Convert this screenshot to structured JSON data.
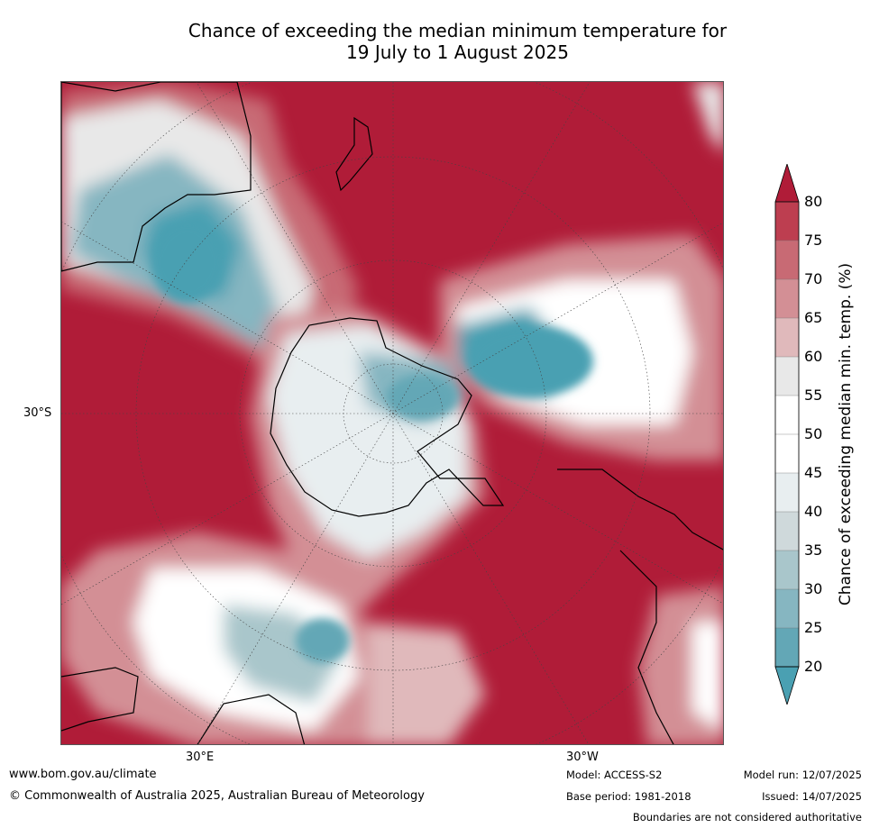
{
  "title_line1": "Chance of exceeding the median minimum temperature for",
  "title_line2": "19 July to 1 August 2025",
  "map": {
    "lat_label": "30°S",
    "lon_label_left": "30°E",
    "lon_label_right": "30°W",
    "colors": {
      "high": "#b01c38",
      "low": "#4aa0b2",
      "neutral": "#ffffff"
    }
  },
  "colorbar": {
    "title": "Chance of exceeding median min. temp. (%)",
    "ticks": [
      "80",
      "75",
      "70",
      "65",
      "60",
      "55",
      "50",
      "45",
      "40",
      "35",
      "30",
      "25",
      "20"
    ],
    "colors": [
      "#b01c38",
      "#bd3e50",
      "#c86a74",
      "#d38f95",
      "#e0b9bb",
      "#e8e8e8",
      "#ffffff",
      "#ffffff",
      "#e8eef0",
      "#cfd9db",
      "#a9c6cb",
      "#86b6c1",
      "#63a7b6",
      "#4aa0b2"
    ]
  },
  "footer": {
    "website": "www.bom.gov.au/climate",
    "copyright": "© Commonwealth of Australia 2025, Australian Bureau of Meteorology",
    "model": "Model: ACCESS-S2",
    "base_period": "Base period: 1981-2018",
    "model_run": "Model run: 12/07/2025",
    "issued": "Issued: 14/07/2025",
    "disclaimer": "Boundaries are not considered authoritative"
  }
}
